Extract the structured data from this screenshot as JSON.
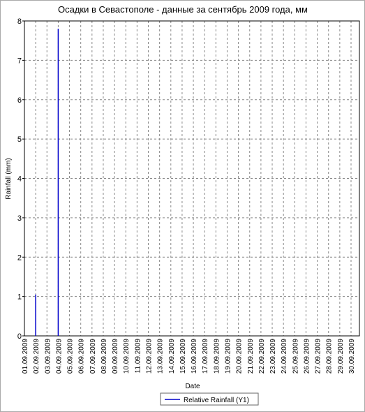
{
  "chart_data": {
    "type": "spike",
    "title": "Осадки в Севастополе - данные за сентябрь 2009 года, мм",
    "x_label": "Date",
    "y_label": "Rainfall (mm)",
    "categories": [
      "01.09.2009",
      "02.09.2009",
      "03.09.2009",
      "04.09.2009",
      "05.09.2009",
      "06.09.2009",
      "07.09.2009",
      "08.09.2009",
      "09.09.2009",
      "10.09.2009",
      "11.09.2009",
      "12.09.2009",
      "13.09.2009",
      "14.09.2009",
      "15.09.2009",
      "16.09.2009",
      "17.09.2009",
      "18.09.2009",
      "19.09.2009",
      "20.09.2009",
      "21.09.2009",
      "22.09.2009",
      "23.09.2009",
      "24.09.2009",
      "25.09.2009",
      "26.09.2009",
      "27.09.2009",
      "28.09.2009",
      "29.09.2009",
      "30.09.2009"
    ],
    "series": [
      {
        "name": "Relative Rainfall (Y1)",
        "color": "#0000cc",
        "values": [
          0,
          1.05,
          0,
          7.8,
          0,
          0,
          0,
          0,
          0,
          0,
          0,
          0,
          0,
          0,
          0,
          0,
          0,
          0,
          0,
          0,
          0,
          0,
          0,
          0,
          0,
          0,
          0,
          0,
          0,
          0
        ]
      }
    ],
    "ylim": [
      0,
      8
    ],
    "yticks": [
      0,
      1,
      2,
      3,
      4,
      5,
      6,
      7,
      8
    ],
    "grid": true
  }
}
